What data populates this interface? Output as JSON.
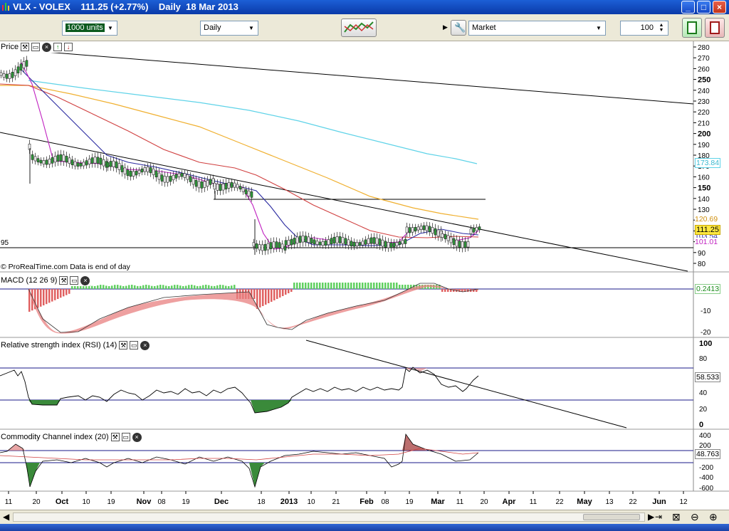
{
  "window": {
    "title": "VLX - VOLEX    111.25 (+2.77%)    Daily  18 Mar 2013",
    "min_label": "_",
    "max_label": "□",
    "close_label": "×"
  },
  "toolbar": {
    "units_value": "1000 units",
    "period_value": "Daily",
    "order_type_value": "Market",
    "quantity_value": "100"
  },
  "price_panel": {
    "label": "Price",
    "credit": "© ProRealTime.com  Data is end of day",
    "left_level_label": "95",
    "y_ticks": [
      "280",
      "270",
      "260",
      "250",
      "240",
      "230",
      "220",
      "210",
      "200",
      "190",
      "180",
      "170",
      "160",
      "150",
      "140",
      "130",
      "120",
      "110",
      "100",
      "90",
      "80"
    ],
    "badges": {
      "ma_cyan": "173.84",
      "ma_orange": "120.69",
      "price": "111.25",
      "ma_blue": "103.54",
      "ma_purple": "101.01"
    }
  },
  "macd_panel": {
    "label": "MACD (12 26 9)",
    "y_ticks": [
      "-10",
      "-20"
    ],
    "badge": "0.2413"
  },
  "rsi_panel": {
    "label": "Relative strength index (RSI) (14)",
    "y_ticks": [
      "100",
      "80",
      "60",
      "40",
      "20",
      "0"
    ],
    "badge": "58.533"
  },
  "cci_panel": {
    "label": "Commodity Channel index (20)",
    "y_ticks": [
      "400",
      "200",
      "0",
      "-200",
      "-400",
      "-600"
    ],
    "badge": "48.763"
  },
  "x_axis": {
    "labels": [
      "11",
      "20",
      "Oct",
      "10",
      "19",
      "Nov",
      "08",
      "19",
      "Dec",
      "18",
      "2013",
      "10",
      "21",
      "Feb",
      "08",
      "19",
      "Mar",
      "11",
      "20",
      "Apr",
      "11",
      "22",
      "May",
      "13",
      "22",
      "Jun",
      "12"
    ]
  },
  "colors": {
    "up_candle": "#2e9e3a",
    "down_candle": "#333333",
    "ma_cyan": "#5fd3e8",
    "ma_orange": "#f0b030",
    "ma_red": "#d04040",
    "ma_blue": "#2a2aa0",
    "ma_purple": "#c020c0",
    "hist_neg": "#e06060",
    "hist_pos": "#60d060",
    "band": "#1a1a8a"
  }
}
